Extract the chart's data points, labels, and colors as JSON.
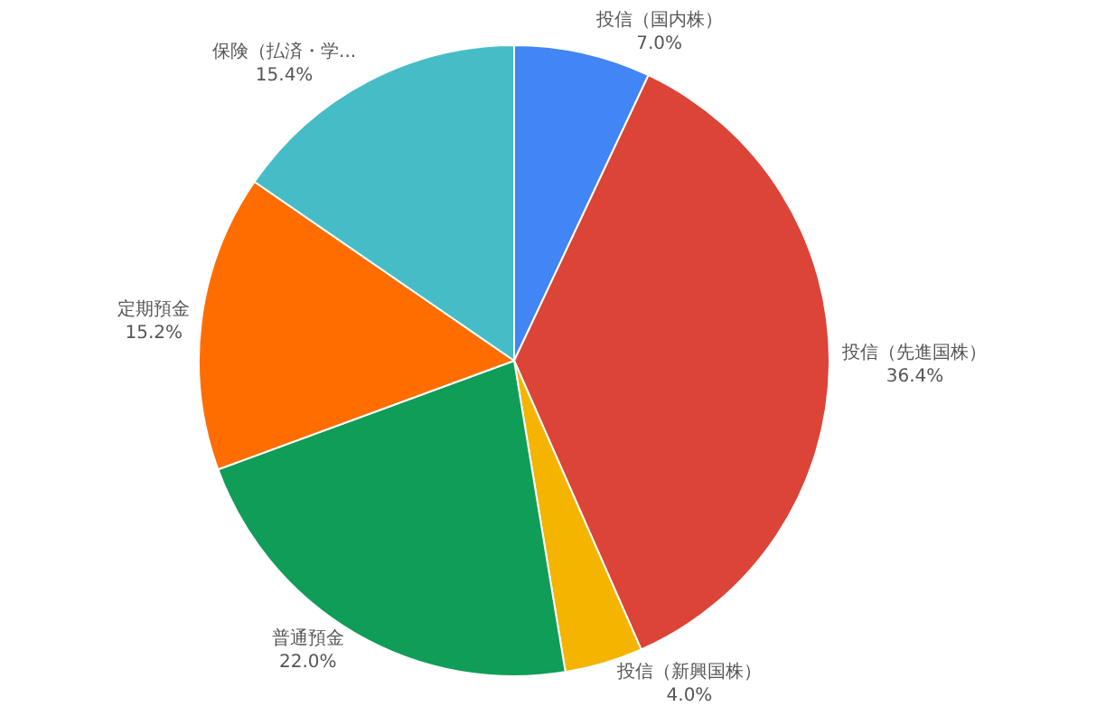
{
  "chart_data": {
    "type": "pie",
    "categories": [
      "投信（国内株）",
      "投信（先進国株）",
      "投信（新興国株）",
      "普通預金",
      "定期預金",
      "保険（払済・学..."
    ],
    "values": [
      7.0,
      36.4,
      4.0,
      22.0,
      15.2,
      15.4
    ],
    "value_labels": [
      "7.0%",
      "36.4%",
      "4.0%",
      "22.0%",
      "15.2%",
      "15.4%"
    ],
    "colors": [
      "#4285f4",
      "#db4437",
      "#f4b400",
      "#0f9d58",
      "#ff6d01",
      "#46bdc6"
    ],
    "legend": false
  }
}
